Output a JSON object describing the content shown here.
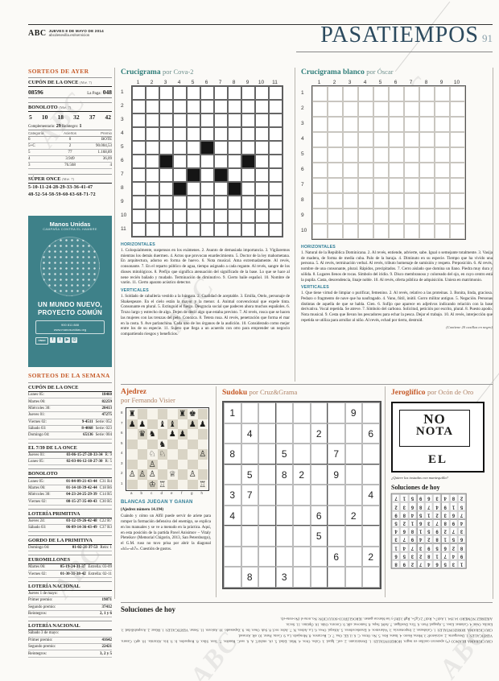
{
  "masthead": {
    "brand": "ABC",
    "date_line": "JUEVES 8 DE MAYO DE 2014",
    "site_line": "abcdesevilla.es/servicios",
    "section_title": "PASATIEMPOS",
    "page_number": "91"
  },
  "watermark_text": "ABC",
  "colors": {
    "accent_orange": "#c65a28",
    "accent_teal": "#2e7d79",
    "clue_blue": "#2f7d96",
    "ad_teal": "#3e8189",
    "masthead_blue": "#2c4a5e"
  },
  "sorteos_ayer": {
    "heading": "SORTEOS DE AYER",
    "cupon": {
      "title": "CUPÓN DE LA ONCE",
      "day": "(Mié. 7)",
      "number": "08596",
      "paga_label": "La Paga:",
      "paga_value": "048"
    },
    "bonoloto": {
      "title": "BONOLOTO",
      "day": "(Mié. 7)",
      "numbers": [
        "5",
        "10",
        "18",
        "32",
        "37",
        "42"
      ],
      "comp_label": "Complementario:",
      "comp_value": "29",
      "reint_label": "Reintegro:",
      "reint_value": "1",
      "table_headers": [
        "Categoría",
        "Aciertos",
        "Premio"
      ],
      "table_rows": [
        [
          "6",
          "0",
          "BOTE"
        ],
        [
          "5+C",
          "2",
          "90.004,53"
        ],
        [
          "5",
          "77",
          "1.168,89"
        ],
        [
          "4",
          "3.949",
          "36,09"
        ],
        [
          "3",
          "76.568",
          "4"
        ]
      ]
    },
    "super_once": {
      "title": "SÚPER ONCE",
      "day": "(Mié. 7)",
      "line1": "5-10-11-24-28-29-33-36-41-47",
      "line2": "48-52-54-58-59-60-63-68-71-72"
    }
  },
  "ad": {
    "brand": "Manos Unidas",
    "campaign": "CAMPAÑA CONTRA EL HAMBRE",
    "headline1": "UN MUNDO NUEVO,",
    "headline2": "PROYECTO COMÚN",
    "contact_line1": "900 811 888",
    "contact_line2": "www.manosunidas.org",
    "social_icons": [
      "ONGD",
      "f",
      "t",
      "▶",
      "@"
    ]
  },
  "sorteos_semana": {
    "heading": "SORTEOS DE LA SEMANA",
    "blocks": [
      {
        "title": "CUPÓN DE LA ONCE",
        "rows": [
          [
            "Lunes 05:",
            "18460",
            ""
          ],
          [
            "Martes 06:",
            "82259",
            ""
          ],
          [
            "Miércoles 30:",
            "20413",
            ""
          ],
          [
            "Jueves 01:",
            "47275",
            ""
          ],
          [
            "Viernes 02:",
            "9-4511",
            "Serie: 052"
          ],
          [
            "Sábado 03:",
            "8-4068",
            "Serie: 023"
          ],
          [
            "Domingo 04:",
            "65136",
            "Serie: 004"
          ]
        ]
      },
      {
        "title": "EL 7/39 DE LA ONCE",
        "rows": [
          [
            "Jueves 01:",
            "03-06-15-27-28-33-34",
            "R: 9"
          ],
          [
            "Lunes 05:",
            "02-03-06-12-18-27-30",
            "R: 5"
          ]
        ]
      },
      {
        "title": "BONOLOTO",
        "rows": [
          [
            "Lunes 05:",
            "01-04-09-21-43-44",
            "C31 R4"
          ],
          [
            "Martes 06:",
            "01-14-18-39-42-44",
            "C18 R6"
          ],
          [
            "Miércoles 30:",
            "04-23-24-25-29-39",
            "C14 R5"
          ],
          [
            "Viernes 02:",
            "08-15-27-35-40-43",
            "C30 R5"
          ]
        ]
      },
      {
        "title": "LOTERÍA PRIMITIVA",
        "rows": [
          [
            "Jueves 24:",
            "03-12-19-26-42-48",
            "C22 R7"
          ],
          [
            "Sábado 03:",
            "06-09-14-36-43-49",
            "C37 R3"
          ]
        ]
      },
      {
        "title": "GORDO DE LA PRIMITIVA",
        "rows": [
          [
            "Domingo 04:",
            "01-02-21-37-53",
            "Rein: 1"
          ]
        ]
      },
      {
        "title": "EUROMILLONES",
        "rows": [
          [
            "Martes 06:",
            "05-19-24-31-37",
            "Estrella: 03-09"
          ],
          [
            "Viernes 02:",
            "01-30-31-38-42",
            "Estrella: 02-11"
          ]
        ]
      },
      {
        "title": "LOTERÍA NACIONAL",
        "subtitle": "Jueves 1 de mayo:",
        "rows": [
          [
            "Primer premio:",
            "19871",
            ""
          ],
          [
            "Segundo premio:",
            "37412",
            ""
          ],
          [
            "Reintegros:",
            "2, 1 y 6",
            ""
          ]
        ]
      },
      {
        "title": "LOTERÍA NACIONAL",
        "subtitle": "Sábado 3 de mayo:",
        "rows": [
          [
            "Primer premio:",
            "41642",
            ""
          ],
          [
            "Segundo premio:",
            "22421",
            ""
          ],
          [
            "Reintegros:",
            "3, 2 y 5",
            ""
          ]
        ]
      }
    ]
  },
  "crucigrama": {
    "title": "Crucigrama",
    "byline": "por Cova-2",
    "size": 11,
    "col_labels": [
      "1",
      "2",
      "3",
      "4",
      "5",
      "6",
      "7",
      "8",
      "9",
      "10",
      "11"
    ],
    "row_labels": [
      "1",
      "2",
      "3",
      "4",
      "5",
      "6",
      "7",
      "8",
      "9",
      "10",
      "11"
    ],
    "black_cells": [
      [
        5,
        6
      ],
      [
        6,
        3
      ],
      [
        6,
        9
      ],
      [
        7,
        5
      ],
      [
        7,
        7
      ],
      [
        8,
        4
      ],
      [
        8,
        8
      ]
    ],
    "horizontales_label": "HORIZONTALES",
    "horizontales": "1. Coloquialmente, suspensos en los exámenes. 2. Asunto de demasiada importancia. 3. Vigilaremos mientras los demás duermen. 4. Actos que provocan enardecimiento. 5. Doctor de la ley mahometana. En arquitectura, adorno en forma de huevo. 6. Nota musical. Ama extremadamente. Al revés, consonante. 7. En el reparto público de agua, tiempo asignado a cada regante. Al revés, sangre de los dioses mitológicos. 8. Prefijo que significa atenuación del significado de la base. Lo que se hace al nene recién bañado y mudado. Terminación de diminutivo. 9. Cierto baile español. 10. Nombre de varón. 11. Cierto aparato acústico detector.",
    "verticales_label": "VERTICALES",
    "verticales": "1. Soldado de caballería vestido a la húngara. 2. Cualidad de aceptable. 3. Emilia, Otelo, personaje de Shakespeare. En el cielo están la mayor y la menor. 4. Animal convencional que expele tinta. Consonante en plural. 5. Extinguid el fuego. Desgracia social que padecen ahora muchos españoles. 6. Trozo largo y estrecho de algo. Dejen de decir algo que estaba previsto. 7. Al revés, rosca que se hacen las mujeres con las trenzas del pelo. Conozca. 8. Tetera rusa. Al revés, penetración que forma el mar en la costa. 9. Ave parlanchina. Cada uno de los órganos de la audición. 10. Considerado como mejor entre los de su especie. 11. Sujeto que llega a un acuerdo con otro para emprender un negocio compartiendo riesgos y beneficios."
  },
  "crucigrama_blanco": {
    "title": "Crucigrama blanco",
    "byline": "por Óscar",
    "size": 10,
    "col_labels": [
      "1",
      "2",
      "3",
      "4",
      "5",
      "6",
      "7",
      "8",
      "9",
      "10"
    ],
    "row_labels": [
      "1",
      "2",
      "3",
      "4",
      "5",
      "6",
      "7",
      "8",
      "9",
      "10"
    ],
    "horizontales_label": "HORIZONTALES",
    "horizontales": "1. Natural de la República Dominicana. 2. Al revés, entiende, advierte, sabe. Igual o semejante totalmente. 3. Vasija de madera, de forma de media cuba. Palo de la baraja. 4. Diminuto en su especie. Tiempo que ha vivido una persona. 5. Al revés, terminación verbal. Al revés, tributo homenaje de sumisión y respeto. Preposición. 6. Al revés, nombre de una consonante, plural. Rápidos, precipitados. 7. Cerro aislado que domina un llano. Piedra muy dura y sólida. 8. Lugares llenos de rocas. Símbolo del iridio. 9. Disco membranoso y coloreado del ojo, en cuyo centro está la pupila. Casta, descendencia, linaje noble. 10. Al revés, oferta pública de adquisición. Uniera en matrimonio.",
    "verticales_label": "VERTICALES",
    "verticales": "1. Que tiene virtud de limpiar o purificar, femenino. 2. Al revés, relativo a las proteínas. 3. Bonita, linda, graciosa. Pedazo o fragmento de nave que ha naufragado. 4. Vano, fútil, inútil. Gorro militar antiguo. 5. Negación. Personas distintas de aquella de que se habla. Cien. 6. Sufijo que aparece en adjetivos indicando relación con la base derivativa. Vocal repetida. Se atreve. 7. Símbolo del carbono. Solicitud, petición por escrito, plural. 8. Puesto apodo. Nota musical. 9. Cesta que llevan los pescadores para echar la pesca. Dejar el trabajo. 10. Al revés, interjección que repetida se utiliza para arrullar al niño. Al revés, echad por tierra, destruid.",
    "footnote": "(Contiene 20 casillas en negro)"
  },
  "ajedrez": {
    "title": "Ajedrez",
    "byline": "por Fernando Visier",
    "board": [
      "r....rk.",
      "pp.bb.pp",
      ".qn.pp..",
      "...n....",
      "..NN...P",
      "..P.....",
      "PPP.Q.P.",
      "..KR...R"
    ],
    "rank_labels": [
      "8",
      "7",
      "6",
      "5",
      "4",
      "3",
      "2",
      "1"
    ],
    "file_labels": [
      "a",
      "b",
      "c",
      "d",
      "e",
      "f",
      "g",
      "h"
    ],
    "caption": "BLANCAS JUEGAN Y GANAN",
    "number": "(Ajedrez número 14.194)",
    "text": "Cuándo y cómo un Alfil puede servir de ariete para romper la formación defensiva del enemigo, se explica en los manuales y se ve a menudo en la práctica. Aquí, en esta posición de la partida Pavel Anisimov – Vitaly Pleteikov (Memorial Chigorin, 2013, San Petersburgo), el G.M. ruso no tuvo prisa por abrir la diagonal «h1»-«h7». Cuestión de gustos."
  },
  "sudoku": {
    "title": "Sudoku",
    "byline": "por Cruz&Grama",
    "givens": [
      "1......9.",
      ".4...2..6",
      "8..5..7..",
      ".5.82.9..",
      "37......4",
      "4....6.2.",
      ".....5...",
      "......6.2",
      ".8.3....."
    ]
  },
  "jeroglifico": {
    "title": "Jeroglífico",
    "byline": "por Ocón de Oro",
    "word1": "NO",
    "word2": "NOTA",
    "word3": "EL",
    "question": "¿Quiere las tostadas con mantequilla?",
    "solutions_heading": "Soluciones de hoy",
    "sudoku_solution": [
      "135647298",
      "947182356",
      "826593741",
      "651824973",
      "372951864",
      "498736125",
      "763215489",
      "519478632",
      "284369517"
    ]
  },
  "soluciones": {
    "heading": "Soluciones de hoy",
    "lines": [
      "CRUCIGRAMA BLANCO (*) aparecen casillas en negro. HORIZONTALES: 1. Dominicano. 2. eaC. Igual. 3. Cuba. Oros. 4. Mini. Edad. 5. rA. otubirT. A. 6. seeC. Raudos. 7. Teso. Sílex. 8. Roquedos. Ir. 9. Iris. Alcurnia. 10. apO. Casara. VERTICALES: 1. Detergente. 2. ocinietorP. 3. Mona. Resto. 4. Inane. Ros. 5. No. Otros. C. 6. il. EE. Osa. 7. C. Recursos. 8. Motejado. La. 9. Cesta. Parar. 10. oR. Arrasad.",
      "CRUCIGRAMA. HORIZONTALES: 1. Calabazas. 2. Importancia. 3. Velaremos. 4. Enardecedores. 5. Alfaquí. Oves. 6. La. Adora. N. 7. Ador. rocI. 8. Sub. Oseo. Ito. 9. Zapateado. 10. Aniceto. 11. Sonar. VERTICALES: 1. Húsar. 2. Aceptabilidad. 3. Emilia. Osas. 4. Calamar. Enes. 5. Apagad. Paro. 6. Tira. Desdigan. 7. ñoM. Sepa. 8. Samovar. aíR. 9. Cotorra. Oído. 10. Óptimo. 11. Socio.",
      "AJEDREZ NÚMERO 14.194. 1.Axh7+, Rxh7 2.Cg5+, Rg8 3.Dh5 y las blancas ganan. JEROGLÍFICO-SOLUCIÓN: No, nota el (No-nota-el)."
    ]
  }
}
